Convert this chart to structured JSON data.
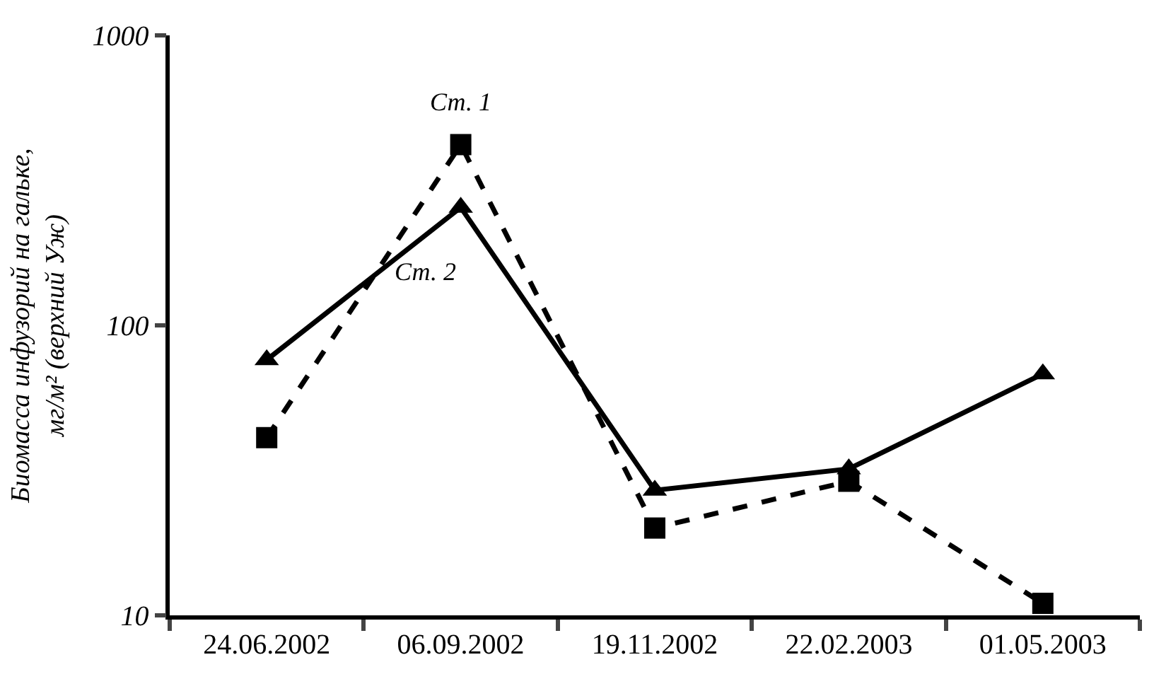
{
  "chart_data": {
    "type": "line",
    "ylabel": "Биомасса инфузорий на гальке,\nмг/м² (верхний Уж)",
    "categories": [
      "24.06.2002",
      "06.09.2002",
      "19.11.2002",
      "22.02.2003",
      "01.05.2003"
    ],
    "series": [
      {
        "name": "Ст. 1",
        "color": "#000000",
        "marker": "square",
        "line_style": "dashed",
        "values": [
          41,
          420,
          20,
          29,
          11
        ]
      },
      {
        "name": "Ст. 2",
        "color": "#000000",
        "marker": "triangle",
        "line_style": "solid",
        "values": [
          76,
          255,
          27,
          32,
          68
        ]
      }
    ],
    "log": "y",
    "ylim": [
      10,
      1000
    ],
    "yticks": [
      10,
      100,
      1000
    ],
    "legend": false
  }
}
